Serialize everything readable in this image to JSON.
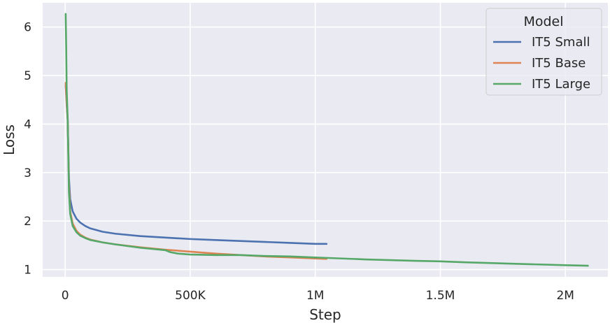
{
  "chart_data": {
    "type": "line",
    "xlabel": "Step",
    "ylabel": "Loss",
    "xlim": [
      -90000,
      2170000
    ],
    "ylim": [
      0.85,
      6.5
    ],
    "xticks": [
      {
        "value": 0,
        "label": "0"
      },
      {
        "value": 500000,
        "label": "500K"
      },
      {
        "value": 1000000,
        "label": "1M"
      },
      {
        "value": 1500000,
        "label": "1.5M"
      },
      {
        "value": 2000000,
        "label": "2M"
      }
    ],
    "yticks": [
      {
        "value": 1,
        "label": "1"
      },
      {
        "value": 2,
        "label": "2"
      },
      {
        "value": 3,
        "label": "3"
      },
      {
        "value": 4,
        "label": "4"
      },
      {
        "value": 5,
        "label": "5"
      },
      {
        "value": 6,
        "label": "6"
      }
    ],
    "grid": true,
    "legend": {
      "title": "Model",
      "position": "top-right"
    },
    "series": [
      {
        "name": "IT5 Small",
        "color": "#4c72b0",
        "points": [
          [
            2000,
            4.8
          ],
          [
            6000,
            4.4
          ],
          [
            10000,
            4.1
          ],
          [
            15000,
            2.9
          ],
          [
            20000,
            2.45
          ],
          [
            30000,
            2.2
          ],
          [
            45000,
            2.05
          ],
          [
            60000,
            1.97
          ],
          [
            80000,
            1.9
          ],
          [
            100000,
            1.85
          ],
          [
            150000,
            1.78
          ],
          [
            200000,
            1.74
          ],
          [
            300000,
            1.69
          ],
          [
            400000,
            1.66
          ],
          [
            500000,
            1.63
          ],
          [
            600000,
            1.61
          ],
          [
            700000,
            1.59
          ],
          [
            800000,
            1.57
          ],
          [
            900000,
            1.55
          ],
          [
            1000000,
            1.53
          ],
          [
            1045000,
            1.53
          ]
        ]
      },
      {
        "name": "IT5 Base",
        "color": "#dd8452",
        "points": [
          [
            2000,
            4.85
          ],
          [
            6000,
            4.45
          ],
          [
            10000,
            4.1
          ],
          [
            15000,
            2.75
          ],
          [
            20000,
            2.2
          ],
          [
            30000,
            1.95
          ],
          [
            45000,
            1.8
          ],
          [
            60000,
            1.72
          ],
          [
            80000,
            1.66
          ],
          [
            100000,
            1.62
          ],
          [
            150000,
            1.56
          ],
          [
            200000,
            1.52
          ],
          [
            300000,
            1.46
          ],
          [
            400000,
            1.41
          ],
          [
            500000,
            1.37
          ],
          [
            600000,
            1.33
          ],
          [
            700000,
            1.3
          ],
          [
            800000,
            1.27
          ],
          [
            900000,
            1.25
          ],
          [
            1000000,
            1.23
          ],
          [
            1045000,
            1.22
          ]
        ]
      },
      {
        "name": "IT5 Large",
        "color": "#55a868",
        "points": [
          [
            2000,
            6.27
          ],
          [
            4000,
            5.6
          ],
          [
            6000,
            4.7
          ],
          [
            10000,
            4.1
          ],
          [
            15000,
            2.6
          ],
          [
            20000,
            2.15
          ],
          [
            30000,
            1.9
          ],
          [
            45000,
            1.77
          ],
          [
            60000,
            1.7
          ],
          [
            80000,
            1.65
          ],
          [
            100000,
            1.61
          ],
          [
            150000,
            1.56
          ],
          [
            200000,
            1.52
          ],
          [
            300000,
            1.45
          ],
          [
            400000,
            1.4
          ],
          [
            420000,
            1.36
          ],
          [
            450000,
            1.33
          ],
          [
            500000,
            1.31
          ],
          [
            600000,
            1.3
          ],
          [
            700000,
            1.3
          ],
          [
            800000,
            1.28
          ],
          [
            900000,
            1.27
          ],
          [
            1000000,
            1.25
          ],
          [
            1200000,
            1.21
          ],
          [
            1400000,
            1.18
          ],
          [
            1500000,
            1.17
          ],
          [
            1600000,
            1.15
          ],
          [
            1800000,
            1.12
          ],
          [
            2000000,
            1.09
          ],
          [
            2090000,
            1.08
          ]
        ]
      }
    ]
  }
}
